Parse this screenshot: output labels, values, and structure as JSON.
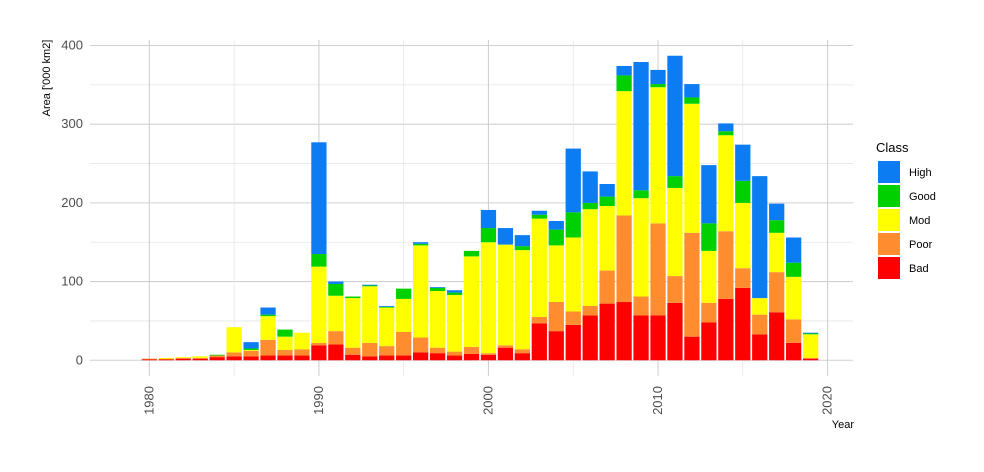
{
  "chart_data": {
    "type": "bar",
    "stacked": true,
    "xlabel": "Year",
    "ylabel": "Area ['000 km2]",
    "xlim": [
      1976.5,
      2021.5
    ],
    "ylim": [
      -20,
      407
    ],
    "x_ticks": [
      1980,
      1990,
      2000,
      2010,
      2020
    ],
    "y_ticks": [
      0,
      100,
      200,
      300,
      400
    ],
    "grid": true,
    "legend_position": "right",
    "legend_title": "Class",
    "legend_order": [
      "High",
      "Good",
      "Mod",
      "Poor",
      "Bad"
    ],
    "colors": {
      "High": "#0b7cf1",
      "Good": "#00d000",
      "Mod": "#ffff00",
      "Poor": "#ff8c2e",
      "Bad": "#ff0000"
    },
    "x": [
      1980,
      1981,
      1982,
      1983,
      1984,
      1985,
      1986,
      1987,
      1988,
      1989,
      1990,
      1991,
      1992,
      1993,
      1994,
      1995,
      1996,
      1997,
      1998,
      1999,
      2000,
      2001,
      2002,
      2003,
      2004,
      2005,
      2006,
      2007,
      2008,
      2009,
      2010,
      2011,
      2012,
      2013,
      2014,
      2015,
      2016,
      2017,
      2018,
      2019
    ],
    "series": [
      {
        "name": "Bad",
        "values": [
          1,
          1,
          2,
          2,
          4,
          5,
          5,
          6,
          6,
          6,
          19,
          20,
          7,
          5,
          6,
          6,
          10,
          9,
          6,
          8,
          7,
          16,
          9,
          47,
          37,
          45,
          57,
          72,
          74,
          57,
          57,
          73,
          30,
          48,
          78,
          92,
          33,
          61,
          22,
          2
        ]
      },
      {
        "name": "Poor",
        "values": [
          1,
          1,
          1,
          1,
          2,
          5,
          7,
          20,
          7,
          8,
          3,
          17,
          9,
          17,
          12,
          30,
          19,
          7,
          5,
          9,
          2,
          3,
          5,
          8,
          37,
          17,
          12,
          42,
          110,
          24,
          117,
          34,
          132,
          25,
          86,
          25,
          25,
          51,
          30,
          1
        ]
      },
      {
        "name": "Mod",
        "values": [
          0,
          1,
          1,
          2,
          0,
          32,
          1,
          30,
          17,
          21,
          97,
          45,
          63,
          72,
          49,
          42,
          117,
          72,
          72,
          115,
          141,
          128,
          126,
          125,
          72,
          94,
          123,
          82,
          158,
          125,
          173,
          112,
          164,
          66,
          122,
          83,
          21,
          50,
          54,
          30
        ]
      },
      {
        "name": "Good",
        "values": [
          0,
          0,
          0,
          0,
          1,
          0,
          2,
          2,
          9,
          0,
          16,
          15,
          2,
          1,
          1,
          13,
          2,
          4,
          3,
          7,
          18,
          0,
          5,
          5,
          20,
          32,
          8,
          12,
          20,
          10,
          4,
          15,
          8,
          35,
          5,
          28,
          0,
          16,
          18,
          1
        ]
      },
      {
        "name": "High",
        "values": [
          0,
          0,
          0,
          0,
          0,
          0,
          8,
          9,
          0,
          0,
          142,
          3,
          0,
          1,
          1,
          0,
          2,
          1,
          3,
          0,
          23,
          21,
          14,
          5,
          11,
          81,
          40,
          16,
          12,
          163,
          18,
          153,
          17,
          74,
          10,
          46,
          155,
          21,
          32,
          1
        ]
      }
    ]
  }
}
